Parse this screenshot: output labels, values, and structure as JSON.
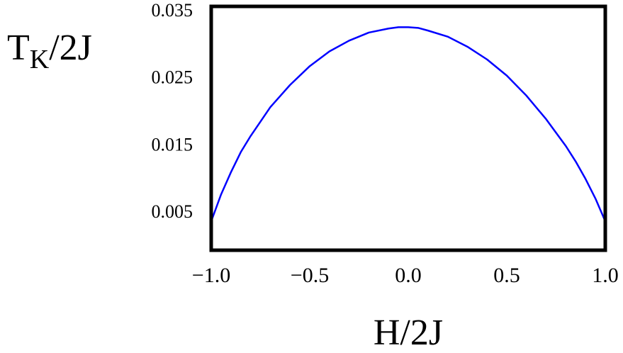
{
  "chart_data": {
    "type": "line",
    "title": "",
    "xlabel": "H/2J",
    "ylabel": {
      "main": "T",
      "sub": "K",
      "rest": "/2J"
    },
    "xlim": [
      -1.0,
      1.0
    ],
    "ylim": [
      -0.0008,
      0.0355
    ],
    "x_ticks": [
      -1.0,
      -0.5,
      0.0,
      0.5,
      1.0
    ],
    "x_tick_labels": [
      "−1.0",
      "−0.5",
      "0.0",
      "0.5",
      "1.0"
    ],
    "y_ticks": [
      0.005,
      0.015,
      0.025,
      0.035
    ],
    "y_tick_labels": [
      "0.005",
      "0.015",
      "0.025",
      "0.035"
    ],
    "grid": false,
    "legend": "none",
    "series": [
      {
        "color": "#0000ff",
        "x": [
          -1.0,
          -0.95,
          -0.9,
          -0.85,
          -0.8,
          -0.7,
          -0.6,
          -0.5,
          -0.4,
          -0.3,
          -0.2,
          -0.1,
          -0.05,
          0.0,
          0.05,
          0.1,
          0.2,
          0.3,
          0.4,
          0.5,
          0.6,
          0.7,
          0.8,
          0.85,
          0.9,
          0.95,
          1.0
        ],
        "y": [
          0.0035,
          0.0075,
          0.0108,
          0.0138,
          0.0162,
          0.0205,
          0.0238,
          0.0266,
          0.0288,
          0.0304,
          0.0316,
          0.0322,
          0.0324,
          0.0324,
          0.0323,
          0.0319,
          0.031,
          0.0295,
          0.0276,
          0.0252,
          0.0222,
          0.0187,
          0.0147,
          0.0124,
          0.0098,
          0.0069,
          0.0035
        ]
      }
    ]
  }
}
